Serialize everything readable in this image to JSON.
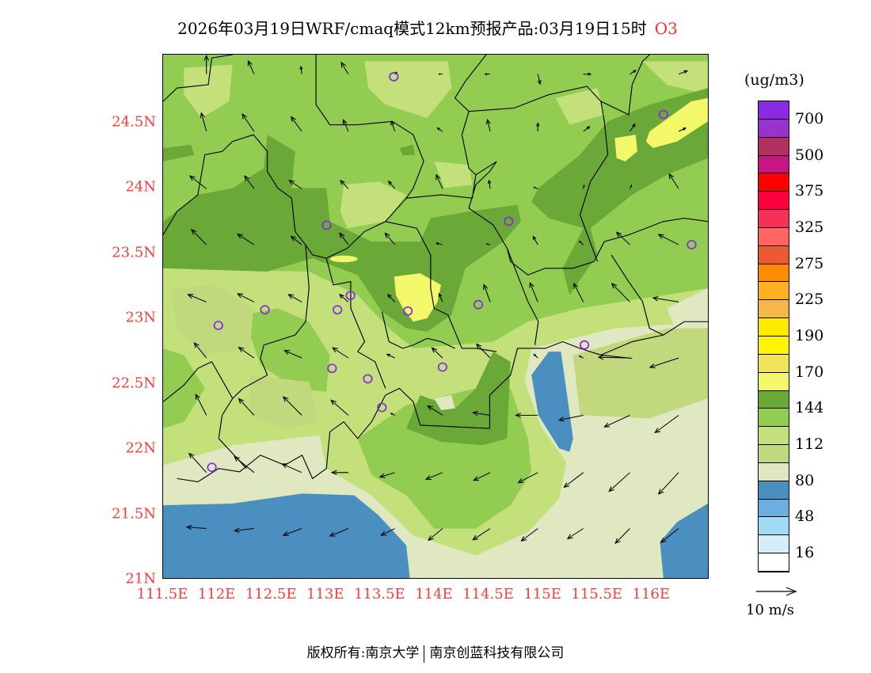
{
  "title": {
    "text": "2026年03月19日WRF/cmaq模式12km预报产品:03月19日15时",
    "species": "O3"
  },
  "footer": {
    "left": "版权所有:南京大学",
    "right": "南京创蓝科技有限公司"
  },
  "chart_data": {
    "type": "map",
    "title": "2026年03月19日WRF/cmaq模式12km预报产品:03月19日15时 O3",
    "variable": "O3",
    "units": "(ug/m3)",
    "lon_range": [
      111.5,
      116.53
    ],
    "lat_range": [
      21.0,
      25.02
    ],
    "x_ticks": [
      "111.5E",
      "112E",
      "112.5E",
      "113E",
      "113.5E",
      "114E",
      "114.5E",
      "115E",
      "115.5E",
      "116E"
    ],
    "x_tick_values": [
      111.5,
      112,
      112.5,
      113,
      113.5,
      114,
      114.5,
      115,
      115.5,
      116
    ],
    "y_ticks": [
      "21N",
      "21.5N",
      "22N",
      "22.5N",
      "23N",
      "23.5N",
      "24N",
      "24.5N"
    ],
    "y_tick_values": [
      21,
      21.5,
      22,
      22.5,
      23,
      23.5,
      24,
      24.5
    ],
    "colorbar": {
      "labels": [
        "700",
        "500",
        "375",
        "325",
        "275",
        "225",
        "190",
        "170",
        "144",
        "112",
        "80",
        "48",
        "16"
      ],
      "colors": [
        "#8a2be2",
        "#9932cc",
        "#b03060",
        "#c71585",
        "#ff0000",
        "#ff0040",
        "#f83055",
        "#ff6464",
        "#ee5a30",
        "#ff8c00",
        "#ffb020",
        "#f5b64a",
        "#ffea00",
        "#fff500",
        "#f2e35a",
        "#f3f76a",
        "#6aa838",
        "#92cc50",
        "#c3e07a",
        "#c2d87c",
        "#dfe8c0",
        "#4a8fc0",
        "#6aafe0",
        "#a0daf5",
        "#d6eefa",
        "#ffffff"
      ]
    },
    "wind": {
      "reference_label": "10 m/s",
      "reference_speed": 10,
      "grid_lons": [
        111.9,
        112.34,
        112.78,
        113.21,
        113.64,
        114.08,
        114.52,
        114.96,
        115.38,
        115.81,
        116.26
      ],
      "grid_lats": [
        24.87,
        24.43,
        23.99,
        23.56,
        23.12,
        22.69,
        22.25,
        21.81,
        21.38
      ],
      "u": [
        [
          0,
          -1.5,
          -0.2,
          -1.8,
          0.5,
          -0.9,
          -1.3,
          0.6,
          1.9,
          1.5,
          2.2
        ],
        [
          -1.3,
          -3,
          -2.7,
          -1.3,
          -0.9,
          -1.3,
          -0.7,
          0,
          1.6,
          1.3,
          1.8
        ],
        [
          -4.2,
          -2.4,
          -3.2,
          -2,
          -1.6,
          -1.6,
          -0.3,
          -1,
          0.2,
          0.4,
          -2.4
        ],
        [
          -3.8,
          -4.2,
          -2.7,
          -2.2,
          -2.5,
          -1.6,
          -0.9,
          -1.2,
          -1,
          -3.4,
          -5.1
        ],
        [
          -4.7,
          -4.2,
          -3.4,
          -2.2,
          -1.8,
          -0.9,
          -1.6,
          -2,
          -2.4,
          -4.6,
          -6.5
        ],
        [
          -3.1,
          -3.9,
          -4.4,
          -4,
          -2,
          -2.7,
          -3.5,
          -1,
          -1,
          -8,
          -7.3
        ],
        [
          -2.7,
          -3.9,
          -4.7,
          -4.4,
          -1,
          -3.8,
          -4.4,
          -5.6,
          -6.2,
          -6.5,
          -6
        ],
        [
          -4.4,
          -5,
          -5,
          -4.2,
          -3.8,
          -4.2,
          -4.2,
          -5,
          -4.9,
          -5.3,
          -5.1
        ],
        [
          -5,
          -5,
          -4.7,
          -4.7,
          -3.5,
          -3.6,
          -4.4,
          -4.2,
          -4,
          -3.7,
          -4.5
        ]
      ],
      "v": [
        [
          4.9,
          3.5,
          2,
          3.1,
          0.5,
          0,
          0,
          -2.6,
          0,
          1,
          0.9
        ],
        [
          4.9,
          4.6,
          3.9,
          3.1,
          2.7,
          0.9,
          3.1,
          2.2,
          1.3,
          2,
          0.9
        ],
        [
          3.4,
          3.4,
          2.2,
          2.2,
          2,
          3.7,
          2.2,
          0.4,
          0.9,
          0.9,
          3.9
        ],
        [
          4,
          2.8,
          2.2,
          3.1,
          3.1,
          0.4,
          0.2,
          2.2,
          0.9,
          3.3,
          2.7
        ],
        [
          2,
          2.2,
          2,
          2,
          2,
          2.2,
          4.6,
          5.1,
          4.9,
          4.9,
          1.1
        ],
        [
          4,
          2.8,
          2,
          2.7,
          1,
          2.7,
          3.7,
          1,
          0.5,
          0.2,
          -2.5
        ],
        [
          5.5,
          4.4,
          4.9,
          4,
          0.5,
          2.5,
          0.7,
          0,
          -1.3,
          -3.1,
          -4.6
        ],
        [
          5.1,
          4.2,
          2.3,
          0,
          -1.2,
          -1.8,
          -2.1,
          -2.7,
          -3.9,
          -5,
          -5.7
        ],
        [
          0.4,
          -0.6,
          -1.8,
          -2,
          -1.8,
          -3.1,
          -3,
          -3.3,
          -2.7,
          -3.9,
          -3.7
        ]
      ]
    },
    "stations": [
      [
        113.63,
        24.85
      ],
      [
        116.12,
        24.56
      ],
      [
        113.01,
        23.71
      ],
      [
        114.69,
        23.74
      ],
      [
        116.38,
        23.56
      ],
      [
        113.23,
        23.17
      ],
      [
        112.44,
        23.06
      ],
      [
        113.11,
        23.06
      ],
      [
        113.76,
        23.05
      ],
      [
        114.41,
        23.1
      ],
      [
        112.01,
        22.94
      ],
      [
        115.39,
        22.79
      ],
      [
        113.06,
        22.61
      ],
      [
        114.08,
        22.62
      ],
      [
        113.39,
        22.53
      ],
      [
        113.52,
        22.31
      ],
      [
        111.95,
        21.85
      ]
    ],
    "field_colors": {
      "base": "#92cc50",
      "dark": "#6aa838",
      "light": "#c3e07a",
      "light2": "#c2d87c",
      "pale": "#dfe8c0",
      "blue": "#4a8fc0",
      "yellow": "#f3f76a"
    }
  }
}
